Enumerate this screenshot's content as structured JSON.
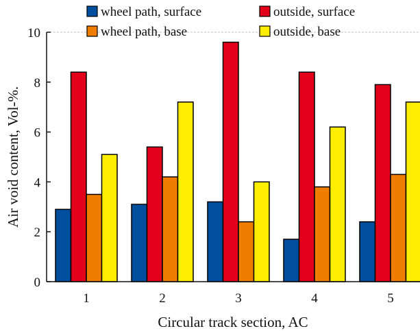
{
  "chart_data": {
    "type": "bar",
    "title": "",
    "xlabel": "Circular track section, AC",
    "ylabel": "Air void content, Vol-%.",
    "ylim": [
      0,
      10
    ],
    "yticks": [
      0,
      2,
      4,
      6,
      8,
      10
    ],
    "categories": [
      "1",
      "2",
      "3",
      "4",
      "5"
    ],
    "legend_position": "top",
    "grid": false,
    "series": [
      {
        "name": "wheel path, surface",
        "color": "#004f9f",
        "values": [
          2.9,
          3.1,
          3.2,
          1.7,
          2.4
        ]
      },
      {
        "name": "outside, surface",
        "color": "#e2001a",
        "values": [
          8.4,
          5.4,
          9.6,
          8.4,
          7.9
        ]
      },
      {
        "name": "wheel path, base",
        "color": "#ef7d00",
        "values": [
          3.5,
          4.2,
          2.4,
          3.8,
          4.3
        ]
      },
      {
        "name": "outside, base",
        "color": "#ffed00",
        "values": [
          5.1,
          7.2,
          4.0,
          6.2,
          7.2
        ]
      }
    ]
  }
}
